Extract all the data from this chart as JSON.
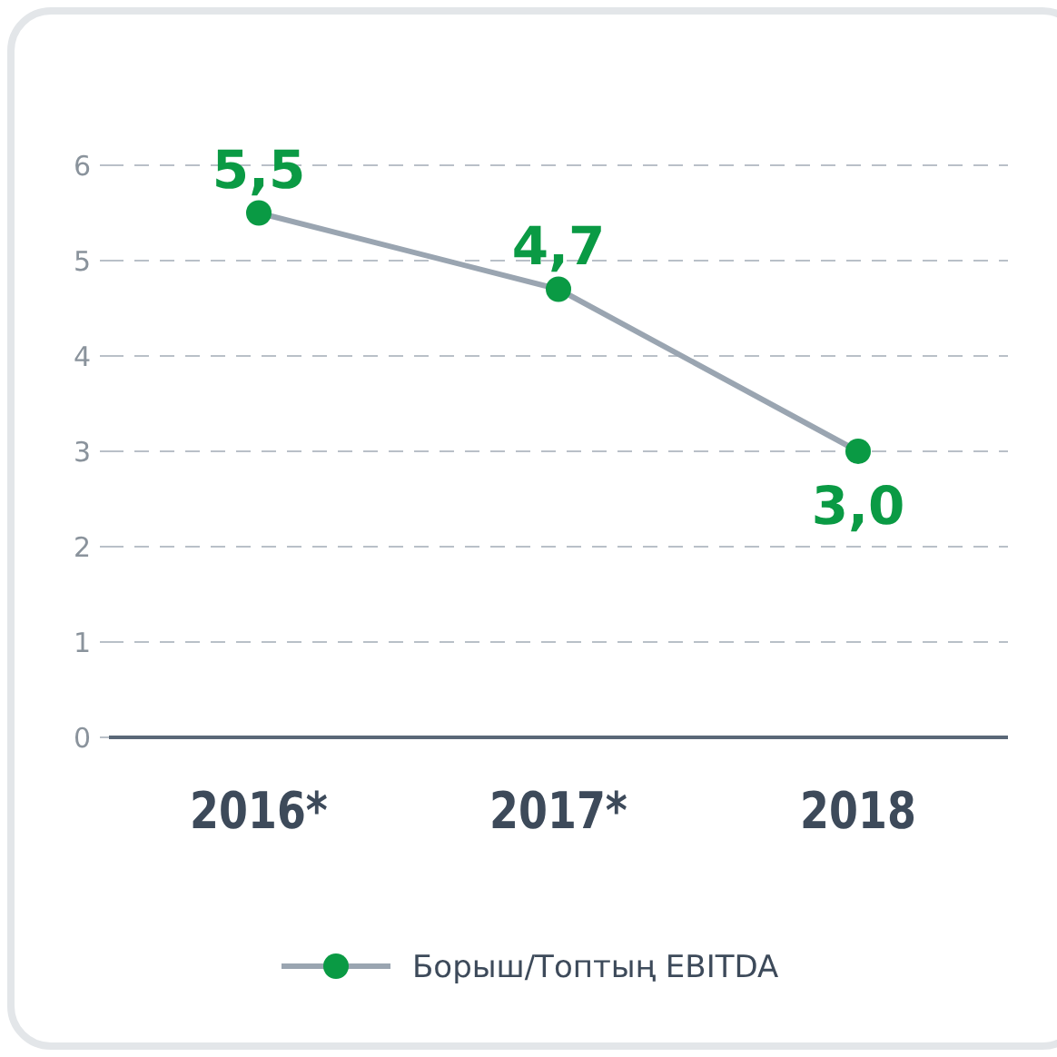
{
  "chart_data": {
    "type": "line",
    "categories": [
      "2016*",
      "2017*",
      "2018"
    ],
    "series": [
      {
        "name": "Борыш/Топтың EBITDA",
        "color": "#0a9a44",
        "values": [
          5.5,
          4.7,
          3.0
        ],
        "value_labels": [
          "5,5",
          "4,7",
          "3,0"
        ]
      }
    ],
    "ylim": [
      0,
      6
    ],
    "yticks": [
      0,
      1,
      2,
      3,
      4,
      5,
      6
    ],
    "grid": "y",
    "legend": "bottom",
    "marker": "circle",
    "line_style": "solid"
  }
}
